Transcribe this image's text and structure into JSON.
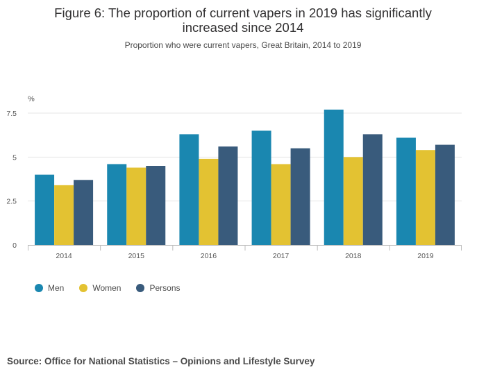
{
  "title_line1": "Figure 6: The proportion of current vapers in 2019 has significantly",
  "title_line2": "increased since 2014",
  "subtitle": "Proportion who were current vapers, Great Britain, 2014 to 2019",
  "source": "Source: Office for National Statistics – Opinions and Lifestyle Survey",
  "chart_data": {
    "type": "bar",
    "title": "Figure 6: The proportion of current vapers in 2019 has significantly increased since 2014",
    "subtitle": "Proportion who were current vapers, Great Britain, 2014 to 2019",
    "ylabel": "%",
    "xlabel": "",
    "ylim": [
      0,
      7.5
    ],
    "yticks": [
      0,
      2.5,
      5,
      7.5
    ],
    "ytick_labels": [
      "0",
      "2.5",
      "5",
      "7.5"
    ],
    "grid": true,
    "legend_position": "bottom-left",
    "categories": [
      "2014",
      "2015",
      "2016",
      "2017",
      "2018",
      "2019"
    ],
    "series": [
      {
        "name": "Men",
        "color": "#1a87b0",
        "values": [
          4.0,
          4.6,
          6.3,
          6.5,
          7.7,
          6.1
        ]
      },
      {
        "name": "Women",
        "color": "#e3c232",
        "values": [
          3.4,
          4.4,
          4.9,
          4.6,
          5.0,
          5.4
        ]
      },
      {
        "name": "Persons",
        "color": "#395b7c",
        "values": [
          3.7,
          4.5,
          5.6,
          5.5,
          6.3,
          5.7
        ]
      }
    ]
  }
}
